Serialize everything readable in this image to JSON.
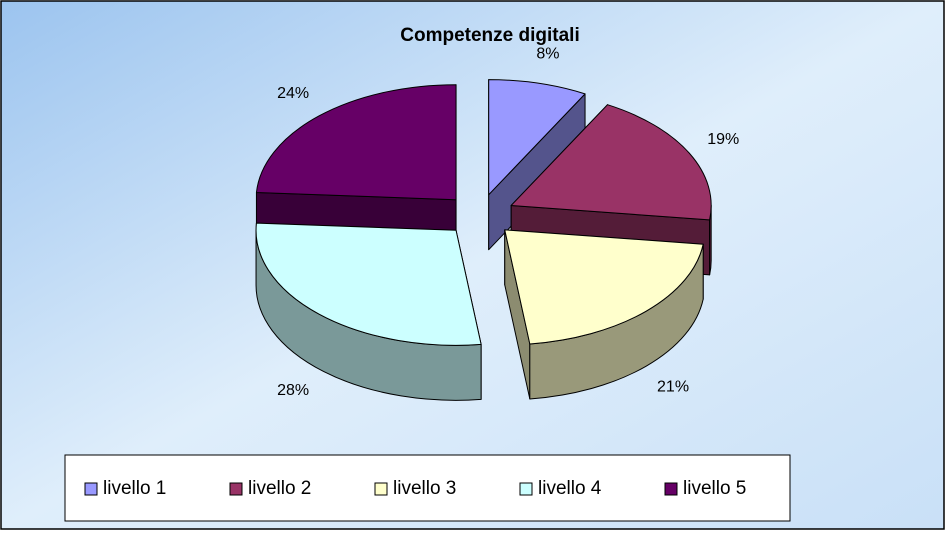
{
  "chart_data": {
    "type": "pie",
    "title": "Competenze digitali",
    "categories": [
      "livello 1",
      "livello 2",
      "livello 3",
      "livello 4",
      "livello 5"
    ],
    "values": [
      8,
      19,
      21,
      28,
      24
    ],
    "value_labels": [
      "8%",
      "19%",
      "21%",
      "28%",
      "24%"
    ],
    "colors": [
      "#9999ff",
      "#993366",
      "#ffffcc",
      "#ccffff",
      "#660066"
    ],
    "legend": "bottom"
  }
}
